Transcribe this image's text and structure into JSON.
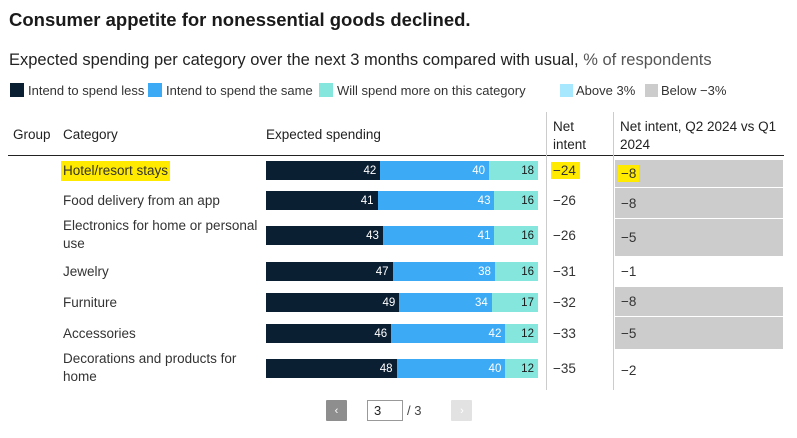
{
  "title": "Consumer appetite for nonessential goods declined.",
  "subtitle": {
    "main": "Expected spending per category over the next 3 months compared with usual,",
    "unit": "% of respondents"
  },
  "legend": {
    "less": "Intend to spend less",
    "same": "Intend to spend the same",
    "more": "Will spend more on this category",
    "above": "Above 3%",
    "below": "Below −3%"
  },
  "columns": {
    "group": "Group",
    "category": "Category",
    "spending": "Expected spending",
    "net_l1": "Net",
    "net_l2": "intent",
    "change_l1": "Net intent, Q2 2024 vs Q1",
    "change_l2": "2024"
  },
  "colors": {
    "less": "#0b1f33",
    "same": "#3daaf5",
    "more": "#84e6dd",
    "above": "#a7e8ff",
    "below": "#cccccc",
    "highlight": "#ffea00"
  },
  "chart_data": {
    "type": "bar",
    "stacked": true,
    "orientation": "horizontal",
    "title": "Consumer appetite for nonessential goods declined.",
    "subtitle": "Expected spending per category over the next 3 months compared with usual, % of respondents",
    "categories": [
      "Hotel/resort stays",
      "Food delivery from an app",
      "Electronics for home or personal use",
      "Jewelry",
      "Furniture",
      "Accessories",
      "Decorations and products for home"
    ],
    "series": [
      {
        "name": "Intend to spend less",
        "values": [
          42,
          41,
          43,
          47,
          49,
          46,
          48
        ]
      },
      {
        "name": "Intend to spend the same",
        "values": [
          40,
          43,
          41,
          38,
          34,
          42,
          40
        ]
      },
      {
        "name": "Will spend more on this category",
        "values": [
          18,
          16,
          16,
          16,
          17,
          12,
          12
        ]
      }
    ],
    "net_intent": [
      "−24",
      "−26",
      "−26",
      "−31",
      "−32",
      "−33",
      "−35"
    ],
    "net_intent_change": [
      "−8",
      "−8",
      "−5",
      "−1",
      "−8",
      "−5",
      "−2"
    ],
    "change_highlight": [
      "below",
      "below",
      "below",
      "none",
      "below",
      "below",
      "none"
    ],
    "highlighted_row": 0,
    "xlim": [
      0,
      100
    ]
  },
  "pagination": {
    "prev": "‹",
    "next": "›",
    "current": "3",
    "total": "/ 3"
  }
}
